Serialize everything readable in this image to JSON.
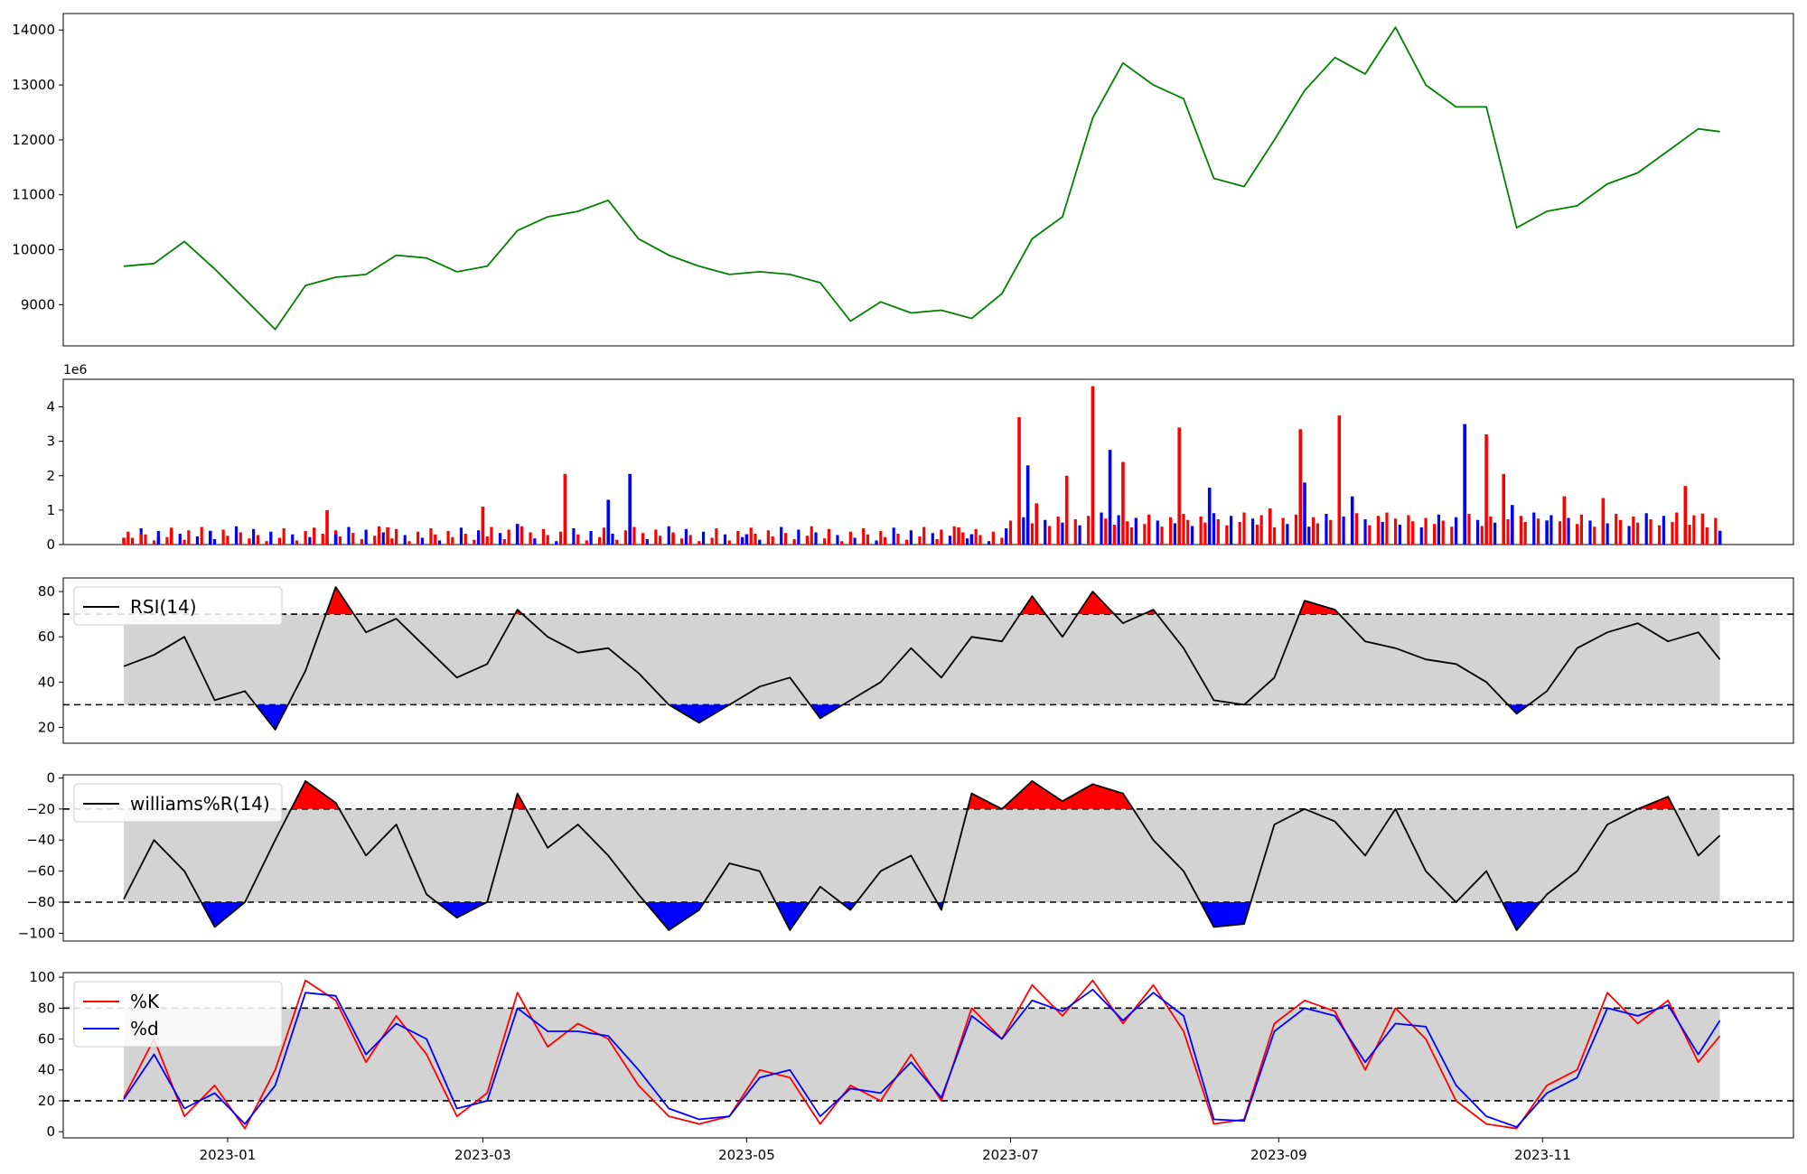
{
  "chart_data": [
    {
      "type": "line",
      "panel": "price",
      "x": [
        "2022-12-08",
        "2022-12-15",
        "2022-12-22",
        "2022-12-29",
        "2023-01-05",
        "2023-01-12",
        "2023-01-19",
        "2023-01-26",
        "2023-02-02",
        "2023-02-09",
        "2023-02-16",
        "2023-02-23",
        "2023-03-02",
        "2023-03-09",
        "2023-03-16",
        "2023-03-23",
        "2023-03-30",
        "2023-04-06",
        "2023-04-13",
        "2023-04-20",
        "2023-04-27",
        "2023-05-04",
        "2023-05-11",
        "2023-05-18",
        "2023-05-25",
        "2023-06-01",
        "2023-06-08",
        "2023-06-15",
        "2023-06-22",
        "2023-06-29",
        "2023-07-06",
        "2023-07-13",
        "2023-07-20",
        "2023-07-27",
        "2023-08-03",
        "2023-08-10",
        "2023-08-17",
        "2023-08-24",
        "2023-08-31",
        "2023-09-07",
        "2023-09-14",
        "2023-09-21",
        "2023-09-28",
        "2023-10-05",
        "2023-10-12",
        "2023-10-19",
        "2023-10-26",
        "2023-11-02",
        "2023-11-09",
        "2023-11-16",
        "2023-11-23",
        "2023-11-30",
        "2023-12-07",
        "2023-12-12"
      ],
      "series": [
        {
          "values": [
            9700,
            9750,
            10150,
            9650,
            9100,
            8550,
            9350,
            9500,
            9550,
            9900,
            9850,
            9600,
            9700,
            10350,
            10600,
            10700,
            10900,
            10200,
            9900,
            9700,
            9550,
            9600,
            9550,
            9400,
            8700,
            9050,
            8850,
            8900,
            8750,
            9200,
            10200,
            10600,
            12400,
            13400,
            13000,
            12750,
            11300,
            11150,
            12000,
            12900,
            13500,
            13200,
            14050,
            13000,
            12600,
            12600,
            10400,
            10700,
            10800,
            11200,
            11400,
            11800,
            12200,
            12150
          ]
        }
      ],
      "color": "#008000",
      "yticks": [
        "9000",
        "10000",
        "11000",
        "12000",
        "13000",
        "14000"
      ],
      "ylim": [
        8250,
        14300
      ]
    },
    {
      "type": "bar",
      "panel": "volume",
      "offset_label": "1e6",
      "yticks": [
        "0",
        "1",
        "2",
        "3",
        "4"
      ],
      "ylim": [
        0,
        4.8
      ],
      "up_color": "#0000ff",
      "down_color": "#ff0000",
      "series": [
        {
          "color": "red",
          "points": [
            [
              "2022-12-08",
              0.2
            ],
            [
              "2022-12-12",
              0.3
            ],
            [
              "2022-12-19",
              0.4
            ],
            [
              "2023-01-24",
              1.0
            ],
            [
              "2023-02-07",
              0.5
            ],
            [
              "2023-03-01",
              1.1
            ],
            [
              "2023-03-20",
              2.05
            ],
            [
              "2023-04-14",
              0.3
            ],
            [
              "2023-06-19",
              0.5
            ],
            [
              "2023-07-03",
              3.7
            ],
            [
              "2023-07-07",
              1.2
            ],
            [
              "2023-07-14",
              2.0
            ],
            [
              "2023-07-20",
              4.6
            ],
            [
              "2023-07-27",
              2.4
            ],
            [
              "2023-08-09",
              3.4
            ],
            [
              "2023-08-30",
              1.05
            ],
            [
              "2023-09-06",
              3.35
            ],
            [
              "2023-09-15",
              3.75
            ],
            [
              "2023-10-19",
              3.2
            ],
            [
              "2023-10-23",
              2.05
            ],
            [
              "2023-11-06",
              1.4
            ],
            [
              "2023-11-15",
              1.35
            ],
            [
              "2023-12-04",
              1.7
            ],
            [
              "2023-12-08",
              0.9
            ]
          ]
        },
        {
          "color": "blue",
          "points": [
            [
              "2022-12-16",
              0.2
            ],
            [
              "2022-12-28",
              0.4
            ],
            [
              "2023-01-26",
              0.3
            ],
            [
              "2023-03-09",
              0.6
            ],
            [
              "2023-03-30",
              1.3
            ],
            [
              "2023-04-04",
              2.05
            ],
            [
              "2023-05-01",
              0.3
            ],
            [
              "2023-06-22",
              0.3
            ],
            [
              "2023-07-05",
              2.3
            ],
            [
              "2023-07-24",
              2.75
            ],
            [
              "2023-08-16",
              1.65
            ],
            [
              "2023-09-07",
              1.8
            ],
            [
              "2023-09-18",
              1.4
            ],
            [
              "2023-10-14",
              3.5
            ],
            [
              "2023-10-25",
              1.15
            ],
            [
              "2023-11-02",
              0.7
            ],
            [
              "2023-12-12",
              0.4
            ]
          ]
        }
      ]
    },
    {
      "type": "line",
      "panel": "rsi",
      "legend": [
        "RSI(14)"
      ],
      "thresholds": [
        30,
        70
      ],
      "yticks": [
        "20",
        "40",
        "60",
        "80"
      ],
      "ylim": [
        13,
        86
      ],
      "x": [
        "2022-12-08",
        "2022-12-15",
        "2022-12-22",
        "2022-12-29",
        "2023-01-05",
        "2023-01-12",
        "2023-01-19",
        "2023-01-26",
        "2023-02-02",
        "2023-02-09",
        "2023-02-16",
        "2023-02-23",
        "2023-03-02",
        "2023-03-09",
        "2023-03-16",
        "2023-03-23",
        "2023-03-30",
        "2023-04-06",
        "2023-04-13",
        "2023-04-20",
        "2023-04-27",
        "2023-05-04",
        "2023-05-11",
        "2023-05-18",
        "2023-05-25",
        "2023-06-01",
        "2023-06-08",
        "2023-06-15",
        "2023-06-22",
        "2023-06-29",
        "2023-07-06",
        "2023-07-13",
        "2023-07-20",
        "2023-07-27",
        "2023-08-03",
        "2023-08-10",
        "2023-08-17",
        "2023-08-24",
        "2023-08-31",
        "2023-09-07",
        "2023-09-14",
        "2023-09-21",
        "2023-09-28",
        "2023-10-05",
        "2023-10-12",
        "2023-10-19",
        "2023-10-26",
        "2023-11-02",
        "2023-11-09",
        "2023-11-16",
        "2023-11-23",
        "2023-11-30",
        "2023-12-07",
        "2023-12-12"
      ],
      "series": [
        {
          "name": "RSI(14)",
          "values": [
            47,
            52,
            60,
            32,
            36,
            19,
            45,
            82,
            62,
            68,
            55,
            42,
            48,
            72,
            60,
            53,
            55,
            44,
            30,
            22,
            30,
            38,
            42,
            24,
            32,
            40,
            55,
            42,
            60,
            58,
            78,
            60,
            80,
            66,
            72,
            55,
            32,
            30,
            42,
            76,
            72,
            58,
            55,
            50,
            48,
            40,
            26,
            36,
            55,
            62,
            66,
            58,
            62,
            50
          ]
        }
      ]
    },
    {
      "type": "line",
      "panel": "williams",
      "legend": [
        "williams%R(14)"
      ],
      "thresholds": [
        -80,
        -20
      ],
      "yticks": [
        "−100",
        "−80",
        "−60",
        "−40",
        "−20",
        "0"
      ],
      "ylim": [
        -105,
        2
      ],
      "x": [
        "2022-12-08",
        "2022-12-15",
        "2022-12-22",
        "2022-12-29",
        "2023-01-05",
        "2023-01-12",
        "2023-01-19",
        "2023-01-26",
        "2023-02-02",
        "2023-02-09",
        "2023-02-16",
        "2023-02-23",
        "2023-03-02",
        "2023-03-09",
        "2023-03-16",
        "2023-03-23",
        "2023-03-30",
        "2023-04-06",
        "2023-04-13",
        "2023-04-20",
        "2023-04-27",
        "2023-05-04",
        "2023-05-11",
        "2023-05-18",
        "2023-05-25",
        "2023-06-01",
        "2023-06-08",
        "2023-06-15",
        "2023-06-22",
        "2023-06-29",
        "2023-07-06",
        "2023-07-13",
        "2023-07-20",
        "2023-07-27",
        "2023-08-03",
        "2023-08-10",
        "2023-08-17",
        "2023-08-24",
        "2023-08-31",
        "2023-09-07",
        "2023-09-14",
        "2023-09-21",
        "2023-09-28",
        "2023-10-05",
        "2023-10-12",
        "2023-10-19",
        "2023-10-26",
        "2023-11-02",
        "2023-11-09",
        "2023-11-16",
        "2023-11-23",
        "2023-11-30",
        "2023-12-07",
        "2023-12-12"
      ],
      "series": [
        {
          "name": "williams%R(14)",
          "values": [
            -78,
            -40,
            -60,
            -96,
            -80,
            -40,
            -2,
            -16,
            -50,
            -30,
            -75,
            -90,
            -80,
            -10,
            -45,
            -30,
            -50,
            -75,
            -98,
            -85,
            -55,
            -60,
            -98,
            -70,
            -85,
            -60,
            -50,
            -85,
            -10,
            -20,
            -2,
            -15,
            -4,
            -10,
            -40,
            -60,
            -96,
            -94,
            -30,
            -20,
            -28,
            -50,
            -20,
            -60,
            -80,
            -60,
            -98,
            -75,
            -60,
            -30,
            -20,
            -12,
            -50,
            -37
          ]
        }
      ]
    },
    {
      "type": "line",
      "panel": "stochastic",
      "legend": [
        "%K",
        "%d"
      ],
      "thresholds": [
        20,
        80
      ],
      "yticks": [
        "0",
        "20",
        "40",
        "60",
        "80",
        "100"
      ],
      "ylim": [
        -4,
        103
      ],
      "x": [
        "2022-12-08",
        "2022-12-15",
        "2022-12-22",
        "2022-12-29",
        "2023-01-05",
        "2023-01-12",
        "2023-01-19",
        "2023-01-26",
        "2023-02-02",
        "2023-02-09",
        "2023-02-16",
        "2023-02-23",
        "2023-03-02",
        "2023-03-09",
        "2023-03-16",
        "2023-03-23",
        "2023-03-30",
        "2023-04-06",
        "2023-04-13",
        "2023-04-20",
        "2023-04-27",
        "2023-05-04",
        "2023-05-11",
        "2023-05-18",
        "2023-05-25",
        "2023-06-01",
        "2023-06-08",
        "2023-06-15",
        "2023-06-22",
        "2023-06-29",
        "2023-07-06",
        "2023-07-13",
        "2023-07-20",
        "2023-07-27",
        "2023-08-03",
        "2023-08-10",
        "2023-08-17",
        "2023-08-24",
        "2023-08-31",
        "2023-09-07",
        "2023-09-14",
        "2023-09-21",
        "2023-09-28",
        "2023-10-05",
        "2023-10-12",
        "2023-10-19",
        "2023-10-26",
        "2023-11-02",
        "2023-11-09",
        "2023-11-16",
        "2023-11-23",
        "2023-11-30",
        "2023-12-07",
        "2023-12-12"
      ],
      "series": [
        {
          "name": "%K",
          "color": "#ff0000",
          "values": [
            22,
            60,
            10,
            30,
            2,
            40,
            98,
            85,
            45,
            75,
            50,
            10,
            25,
            90,
            55,
            70,
            60,
            30,
            10,
            5,
            10,
            40,
            35,
            5,
            30,
            20,
            50,
            20,
            80,
            60,
            95,
            75,
            98,
            70,
            95,
            65,
            5,
            8,
            70,
            85,
            78,
            40,
            80,
            60,
            20,
            5,
            2,
            30,
            40,
            90,
            70,
            85,
            45,
            62
          ]
        },
        {
          "name": "%d",
          "color": "#0000ff",
          "values": [
            21,
            50,
            15,
            25,
            5,
            30,
            90,
            88,
            50,
            70,
            60,
            15,
            20,
            80,
            65,
            65,
            62,
            40,
            15,
            8,
            10,
            35,
            40,
            10,
            28,
            25,
            45,
            22,
            75,
            60,
            85,
            78,
            92,
            72,
            90,
            75,
            8,
            7,
            65,
            80,
            75,
            45,
            70,
            68,
            30,
            10,
            3,
            25,
            35,
            80,
            75,
            82,
            50,
            72
          ]
        }
      ]
    }
  ],
  "x_ticks": [
    "2023-01",
    "2023-03",
    "2023-05",
    "2023-07",
    "2023-09",
    "2023-11"
  ]
}
